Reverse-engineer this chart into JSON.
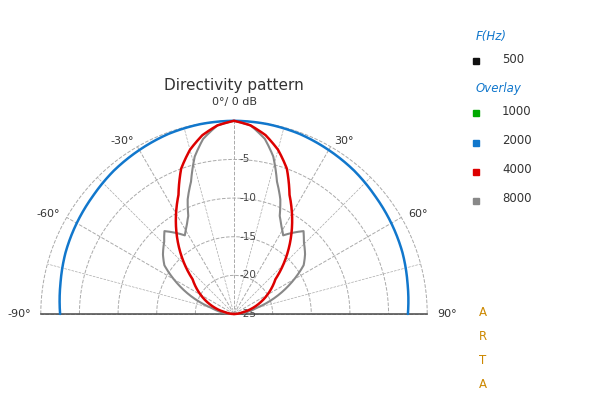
{
  "title": "Directivity pattern",
  "title_color": "#333333",
  "background_color": "#ffffff",
  "grid_color": "#aaaaaa",
  "r_ticks_db": [
    5,
    10,
    15,
    20,
    25
  ],
  "r_max_db": 25,
  "legend_title1": "F(Hz)",
  "legend_entry1_label": "500",
  "legend_entry1_color": "#111111",
  "legend_title2": "Overlay",
  "legend_entries": [
    "1000",
    "2000",
    "4000",
    "8000"
  ],
  "legend_colors": [
    "#00aa00",
    "#1177cc",
    "#dd0000",
    "#888888"
  ],
  "arta_color": "#cc8800",
  "curve_2000_color": "#1177cc",
  "curve_4000_color": "#dd0000",
  "curve_8000_color": "#888888",
  "curve_2000_data": {
    "angles": [
      -90,
      -80,
      -70,
      -60,
      -50,
      -40,
      -30,
      -20,
      -10,
      0,
      10,
      20,
      30,
      40,
      50,
      60,
      70,
      80,
      90
    ],
    "db": [
      -2.5,
      -2.2,
      -1.8,
      -1.5,
      -1.2,
      -0.8,
      -0.5,
      -0.2,
      -0.05,
      0,
      -0.05,
      -0.2,
      -0.5,
      -0.8,
      -1.2,
      -1.5,
      -1.8,
      -2.2,
      -2.5
    ]
  },
  "curve_4000_data": {
    "angles": [
      -90,
      -80,
      -70,
      -60,
      -50,
      -45,
      -40,
      -35,
      -30,
      -25,
      -20,
      -15,
      -10,
      -5,
      0,
      5,
      10,
      15,
      20,
      25,
      30,
      35,
      40,
      45,
      50,
      60,
      70,
      80,
      90
    ],
    "db": [
      -25,
      -24,
      -22,
      -20,
      -18,
      -16,
      -14,
      -12,
      -10,
      -8,
      -5,
      -3,
      -1.5,
      -0.5,
      0,
      -0.5,
      -1.5,
      -3,
      -5,
      -8,
      -10,
      -12,
      -14,
      -16,
      -18,
      -20,
      -22,
      -24,
      -25
    ]
  },
  "curve_8000_data": {
    "angles": [
      -90,
      -80,
      -75,
      -70,
      -65,
      -60,
      -55,
      -50,
      -45,
      -40,
      -35,
      -30,
      -25,
      -20,
      -15,
      -10,
      -5,
      0,
      5,
      10,
      15,
      20,
      25,
      30,
      35,
      40,
      45,
      50,
      55,
      60,
      65,
      70,
      75,
      80,
      90
    ],
    "db": [
      -25,
      -23,
      -21,
      -19,
      -17,
      -15,
      -14,
      -13,
      -13,
      -12,
      -11,
      -12,
      -13,
      -10,
      -8,
      -5,
      -2,
      0,
      2,
      -5,
      -8,
      -10,
      -13,
      -12,
      -11,
      -12,
      -13,
      -13,
      -14,
      -15,
      -17,
      -19,
      -21,
      -23,
      -25
    ]
  }
}
